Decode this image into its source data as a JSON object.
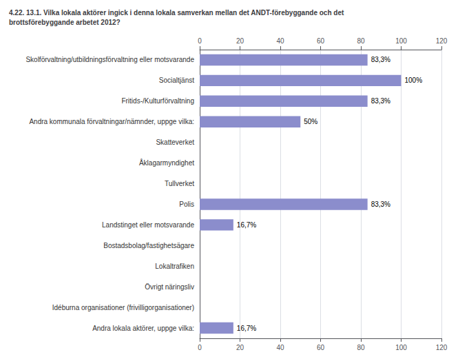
{
  "chart_data": {
    "type": "bar",
    "orientation": "horizontal",
    "title": "4.22. 13.1. Vilka lokala aktörer ingick i denna lokala samverkan mellan det ANDT-förebyggande och det\nbrottsförebyggande arbetet 2012?",
    "categories": [
      "Skolförvaltning/utbildningsförvaltning eller motsvarande",
      "Socialtjänst",
      "Fritids-/Kulturförvaltning",
      "Andra kommunala förvaltningar/nämnder, uppge vilka:",
      "Skatteverket",
      "Åklagarmyndighet",
      "Tullverket",
      "Polis",
      "Landstinget eller motsvarande",
      "Bostadsbolag/fastighetsägare",
      "Lokaltrafiken",
      "Övrigt näringsliv",
      "Idéburna organisationer (frivilligorganisationer)",
      "Andra lokala aktörer, uppge vilka:"
    ],
    "values": [
      83.3,
      100.0,
      83.3,
      50.0,
      0.0,
      0.0,
      0.0,
      83.3,
      16.7,
      0.0,
      0.0,
      0.0,
      0.0,
      16.7
    ],
    "value_labels": [
      "83,3%",
      "100%",
      "83,3%",
      "50%",
      null,
      null,
      null,
      "83,3%",
      "16,7%",
      null,
      null,
      null,
      null,
      "16,7%"
    ],
    "data_labels": true,
    "color": "#8b8dcc",
    "xlim": [
      0,
      120
    ],
    "xticks": [
      0,
      20,
      40,
      60,
      80,
      100,
      120
    ],
    "grid": true
  }
}
